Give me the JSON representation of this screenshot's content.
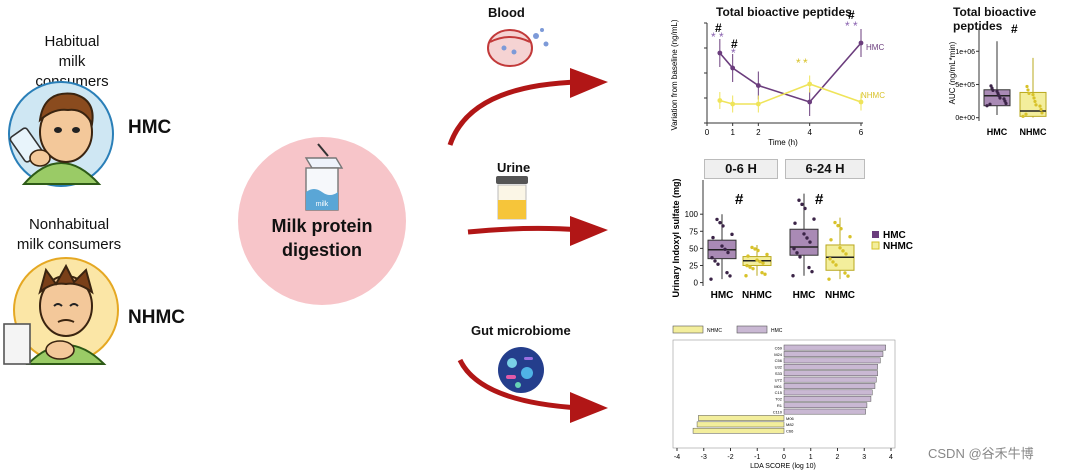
{
  "groups": {
    "hmc": {
      "desc_line1": "Habitual",
      "desc_line2": "milk consumers",
      "abbr": "HMC"
    },
    "nhmc": {
      "desc_line1": "Nonhabitual",
      "desc_line2": "milk consumers",
      "abbr": "NHMC"
    }
  },
  "center": {
    "line1": "Milk protein",
    "line2": "digestion",
    "carton_label": "milk"
  },
  "pathways": {
    "blood": "Blood",
    "urine": "Urine",
    "gut": "Gut microbiome"
  },
  "colors": {
    "hmc": "#6b3d7d",
    "hmc_fill": "#a98ab5",
    "nhmc": "#efe45a",
    "nhmc_fill": "#f3ee9c",
    "arrow": "#b11616",
    "circle": "#f7c5c9"
  },
  "chart_data": [
    {
      "type": "line",
      "title": "Total bioactive peptides",
      "xlabel": "Time (h)",
      "ylabel": "Variation from baseline (ng/mL)",
      "x": [
        0.5,
        1,
        2,
        4,
        6
      ],
      "xticks": [
        "0",
        "1",
        "2",
        "4",
        "6"
      ],
      "series": [
        {
          "name": "HMC",
          "values": [
            1400,
            1100,
            750,
            420,
            1600
          ]
        },
        {
          "name": "NHMC",
          "values": [
            450,
            380,
            380,
            780,
            420
          ]
        }
      ],
      "annotations": {
        "hash": "#",
        "star": "*"
      }
    },
    {
      "type": "box",
      "title": "Total bioactive peptides",
      "ylabel": "AUC (ng/mL*min)",
      "categories": [
        "HMC",
        "NHMC"
      ],
      "yticks": [
        "0e+00",
        "5e+05",
        "1e+06"
      ],
      "boxes": [
        {
          "name": "HMC",
          "q1": 180000,
          "median": 330000,
          "q3": 420000,
          "min": 40000,
          "max": 1150000
        },
        {
          "name": "NHMC",
          "q1": 20000,
          "median": 100000,
          "q3": 380000,
          "min": 0,
          "max": 900000
        }
      ],
      "annotation": "#"
    },
    {
      "type": "box",
      "ylabel": "Urinary Indoxyl sulfate (mg)",
      "facets": [
        "0-6 H",
        "6-24 H"
      ],
      "categories": [
        "HMC",
        "NHMC"
      ],
      "yticks": [
        "0",
        "25",
        "50",
        "75",
        "100"
      ],
      "legend": [
        "HMC",
        "NHMC"
      ],
      "boxes": [
        {
          "facet": "0-6 H",
          "name": "HMC",
          "q1": 35,
          "median": 48,
          "q3": 62,
          "min": 5,
          "max": 100
        },
        {
          "facet": "0-6 H",
          "name": "NHMC",
          "q1": 25,
          "median": 32,
          "q3": 38,
          "min": 10,
          "max": 55
        },
        {
          "facet": "6-24 H",
          "name": "HMC",
          "q1": 40,
          "median": 52,
          "q3": 78,
          "min": 10,
          "max": 130
        },
        {
          "facet": "6-24 H",
          "name": "NHMC",
          "q1": 18,
          "median": 37,
          "q3": 55,
          "min": 5,
          "max": 95
        }
      ],
      "annotation": "#"
    },
    {
      "type": "bar",
      "orientation": "horizontal",
      "xlabel": "LDA SCORE (log 10)",
      "xticks": [
        "-4",
        "-3",
        "-2",
        "-1",
        "0",
        "1",
        "2",
        "3",
        "4"
      ],
      "legend": [
        "NHMC",
        "HMC"
      ],
      "categories": [
        "C69",
        "M24",
        "C56",
        "U32",
        "S33",
        "U72",
        "M01",
        "C15",
        "T02",
        "R1",
        "C110",
        "M06",
        "M82",
        "C66"
      ],
      "values": [
        3.8,
        3.7,
        3.6,
        3.5,
        3.5,
        3.45,
        3.4,
        3.3,
        3.25,
        3.1,
        3.05,
        -3.2,
        -3.25,
        -3.4
      ],
      "groups": [
        "HMC",
        "HMC",
        "HMC",
        "HMC",
        "HMC",
        "HMC",
        "HMC",
        "HMC",
        "HMC",
        "HMC",
        "HMC",
        "NHMC",
        "NHMC",
        "NHMC"
      ]
    }
  ],
  "watermark": "CSDN @谷禾牛博"
}
